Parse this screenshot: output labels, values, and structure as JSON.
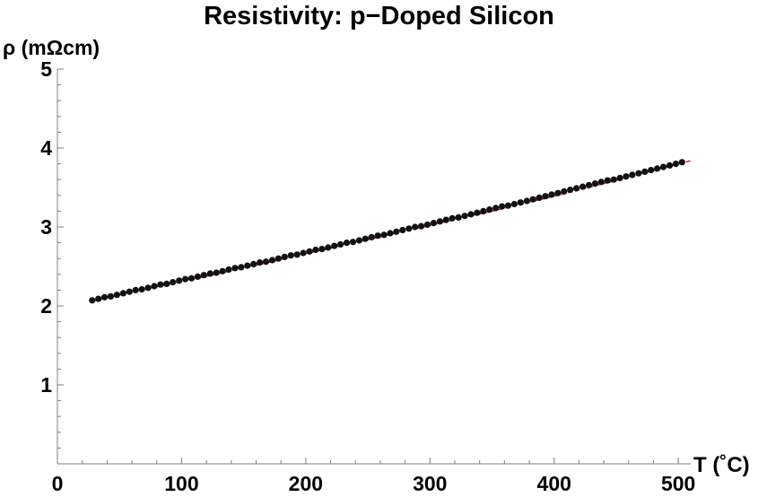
{
  "chart_data": {
    "type": "scatter",
    "title": "Resistivity: p−Doped Silicon",
    "xlabel": "T (˚C)",
    "ylabel": "ρ (mΩcm)",
    "xlim": [
      0,
      510
    ],
    "ylim": [
      0,
      5
    ],
    "x_ticks": [
      0,
      100,
      200,
      300,
      400,
      500
    ],
    "x_tick_labels": [
      "0",
      "100",
      "200",
      "300",
      "400",
      "500"
    ],
    "y_ticks": [
      1,
      2,
      3,
      4,
      5
    ],
    "y_tick_labels": [
      "1",
      "2",
      "3",
      "4",
      "5"
    ],
    "grid": false,
    "colors": {
      "points": "#111111",
      "fit": "#e8262b",
      "axes": "#808080"
    },
    "series": [
      {
        "type": "scatter",
        "x": [
          28,
          33,
          38,
          43,
          48,
          53,
          58,
          63,
          68,
          73,
          78,
          83,
          88,
          93,
          98,
          103,
          108,
          113,
          118,
          123,
          128,
          133,
          138,
          143,
          148,
          153,
          158,
          163,
          168,
          173,
          178,
          183,
          188,
          193,
          198,
          203,
          208,
          213,
          218,
          223,
          228,
          233,
          238,
          243,
          248,
          253,
          258,
          263,
          268,
          273,
          278,
          283,
          288,
          293,
          298,
          303,
          308,
          313,
          318,
          323,
          328,
          333,
          338,
          343,
          348,
          353,
          358,
          363,
          368,
          373,
          378,
          383,
          388,
          393,
          398,
          403,
          408,
          413,
          418,
          423,
          428,
          433,
          438,
          443,
          448,
          453,
          458,
          463,
          468,
          473,
          478,
          483,
          488,
          493,
          498,
          503
        ],
        "y": [
          2.07,
          2.09,
          2.11,
          2.12,
          2.14,
          2.16,
          2.18,
          2.2,
          2.21,
          2.23,
          2.25,
          2.27,
          2.28,
          2.3,
          2.32,
          2.34,
          2.35,
          2.37,
          2.39,
          2.41,
          2.42,
          2.44,
          2.46,
          2.48,
          2.49,
          2.51,
          2.53,
          2.55,
          2.56,
          2.58,
          2.6,
          2.62,
          2.64,
          2.65,
          2.67,
          2.69,
          2.71,
          2.72,
          2.74,
          2.76,
          2.78,
          2.8,
          2.81,
          2.83,
          2.85,
          2.87,
          2.89,
          2.9,
          2.92,
          2.94,
          2.96,
          2.98,
          3.0,
          3.01,
          3.03,
          3.05,
          3.07,
          3.09,
          3.11,
          3.12,
          3.14,
          3.16,
          3.18,
          3.2,
          3.22,
          3.24,
          3.26,
          3.27,
          3.29,
          3.31,
          3.33,
          3.35,
          3.37,
          3.39,
          3.41,
          3.43,
          3.45,
          3.47,
          3.49,
          3.51,
          3.53,
          3.55,
          3.57,
          3.59,
          3.6,
          3.62,
          3.64,
          3.66,
          3.68,
          3.7,
          3.72,
          3.74,
          3.76,
          3.78,
          3.8,
          3.82
        ]
      },
      {
        "type": "fit-line",
        "style": "dashed",
        "x": [
          28,
          70,
          110,
          150,
          200,
          250,
          300,
          350,
          400,
          450,
          510
        ],
        "y": [
          2.06,
          2.21,
          2.34,
          2.48,
          2.66,
          2.84,
          3.02,
          3.2,
          3.39,
          3.59,
          3.84
        ]
      }
    ]
  }
}
